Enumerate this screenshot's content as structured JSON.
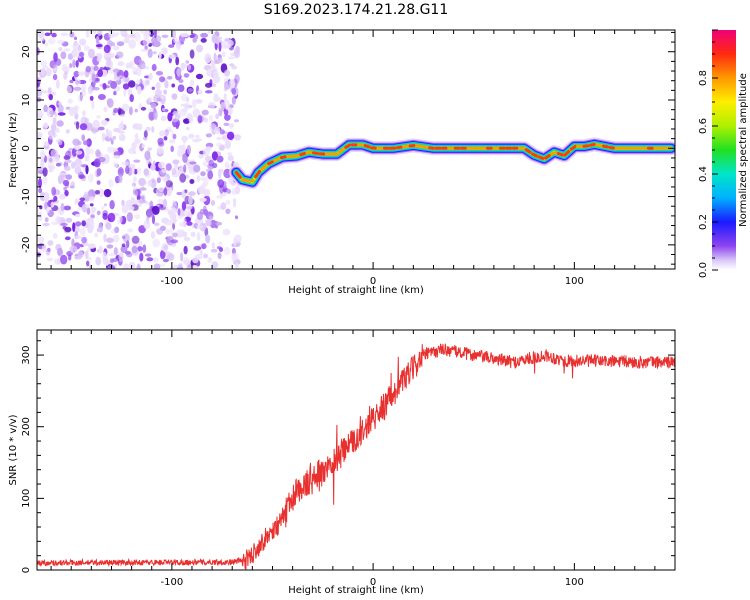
{
  "title": "S169.2023.174.21.28.G11",
  "chart_data": [
    {
      "type": "heatmap",
      "xlabel": "Height of straight line (km)",
      "ylabel": "Frequency (Hz)",
      "xlim": [
        -167,
        150
      ],
      "ylim": [
        -25,
        24.5
      ],
      "xticks": [
        -100,
        0,
        100
      ],
      "yticks": [
        -20,
        -10,
        0,
        10,
        20
      ],
      "noise_region_x": [
        -167,
        -67
      ],
      "ridge": [
        {
          "x": -68,
          "y": -5
        },
        {
          "x": -65,
          "y": -6.5
        },
        {
          "x": -60,
          "y": -7
        },
        {
          "x": -57,
          "y": -5
        },
        {
          "x": -52,
          "y": -3.2
        },
        {
          "x": -45,
          "y": -1.8
        },
        {
          "x": -38,
          "y": -1.6
        },
        {
          "x": -32,
          "y": -0.8
        },
        {
          "x": -25,
          "y": -1.2
        },
        {
          "x": -18,
          "y": -1.2
        },
        {
          "x": -12,
          "y": 0.7
        },
        {
          "x": -5,
          "y": 0.7
        },
        {
          "x": 0,
          "y": 0
        },
        {
          "x": 10,
          "y": 0
        },
        {
          "x": 20,
          "y": 0.6
        },
        {
          "x": 30,
          "y": 0
        },
        {
          "x": 75,
          "y": 0
        },
        {
          "x": 80,
          "y": -1.4
        },
        {
          "x": 85,
          "y": -2.2
        },
        {
          "x": 90,
          "y": -0.8
        },
        {
          "x": 95,
          "y": -1.5
        },
        {
          "x": 100,
          "y": 0.4
        },
        {
          "x": 105,
          "y": 0.4
        },
        {
          "x": 110,
          "y": 0.8
        },
        {
          "x": 120,
          "y": 0
        },
        {
          "x": 135,
          "y": 0
        },
        {
          "x": 148,
          "y": 0
        }
      ],
      "colorbar": {
        "label": "Normalized spectral amplitude",
        "range": [
          0,
          1
        ],
        "ticks": [
          0,
          0.2,
          0.4,
          0.6,
          0.8
        ],
        "tick_labels": [
          "0.0",
          "0.2",
          "0.4",
          "0.6",
          "0.8"
        ]
      }
    },
    {
      "type": "line",
      "xlabel": "Height of straight line (km)",
      "ylabel": "SNR (10 * v/v)",
      "xlim": [
        -167,
        150
      ],
      "ylim": [
        0,
        335
      ],
      "xticks": [
        -100,
        0,
        100
      ],
      "yticks": [
        0,
        100,
        200,
        300
      ],
      "color": "#e8302f",
      "trend": [
        {
          "x": -167,
          "y": 10
        },
        {
          "x": -70,
          "y": 11
        },
        {
          "x": -62,
          "y": 15
        },
        {
          "x": -55,
          "y": 40
        },
        {
          "x": -45,
          "y": 70
        },
        {
          "x": -38,
          "y": 110
        },
        {
          "x": -30,
          "y": 125
        },
        {
          "x": -20,
          "y": 150
        },
        {
          "x": -10,
          "y": 180
        },
        {
          "x": 0,
          "y": 210
        },
        {
          "x": 10,
          "y": 245
        },
        {
          "x": 18,
          "y": 275
        },
        {
          "x": 25,
          "y": 300
        },
        {
          "x": 35,
          "y": 308
        },
        {
          "x": 50,
          "y": 300
        },
        {
          "x": 70,
          "y": 290
        },
        {
          "x": 85,
          "y": 300
        },
        {
          "x": 95,
          "y": 292
        },
        {
          "x": 110,
          "y": 292
        },
        {
          "x": 130,
          "y": 290
        },
        {
          "x": 150,
          "y": 290
        }
      ]
    }
  ]
}
